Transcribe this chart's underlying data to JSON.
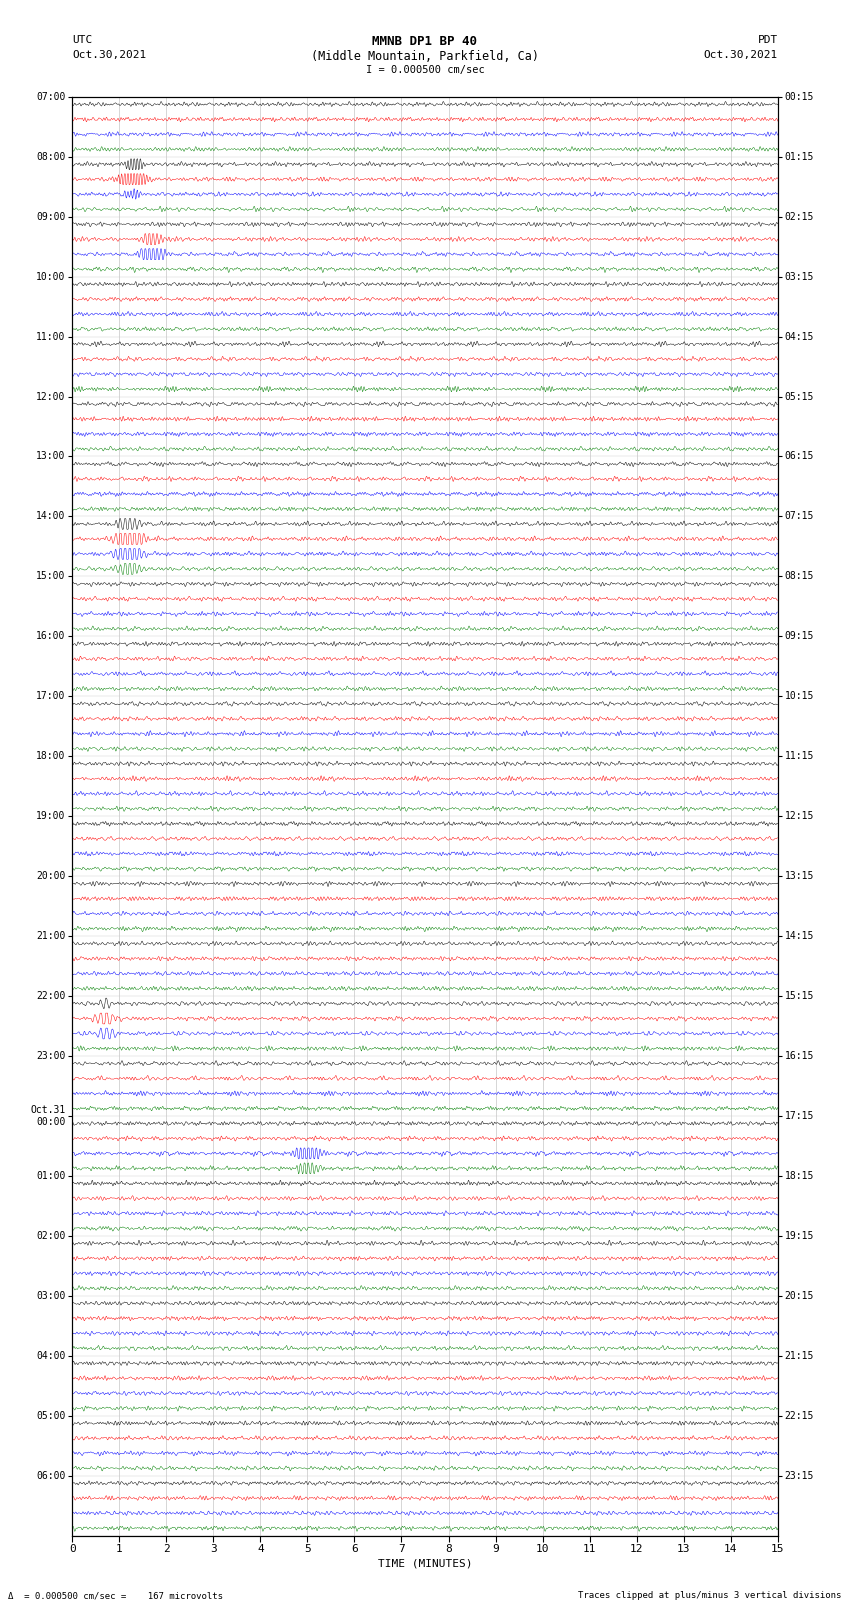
{
  "title_line1": "MMNB DP1 BP 40",
  "title_line2": "(Middle Mountain, Parkfield, Ca)",
  "scale_label": "I = 0.000500 cm/sec",
  "left_header_line1": "UTC",
  "left_header_line2": "Oct.30,2021",
  "right_header_line1": "PDT",
  "right_header_line2": "Oct.30,2021",
  "xlabel": "TIME (MINUTES)",
  "footer_left": "Δ  = 0.000500 cm/sec =    167 microvolts",
  "footer_right": "Traces clipped at plus/minus 3 vertical divisions",
  "bg_color": "#ffffff",
  "trace_colors": [
    "#000000",
    "#ff0000",
    "#0000ff",
    "#008000"
  ],
  "num_groups": 24,
  "traces_per_group": 4,
  "xmin": 0,
  "xmax": 15,
  "left_labels": [
    "07:00",
    "08:00",
    "09:00",
    "10:00",
    "11:00",
    "12:00",
    "13:00",
    "14:00",
    "15:00",
    "16:00",
    "17:00",
    "18:00",
    "19:00",
    "20:00",
    "21:00",
    "22:00",
    "23:00",
    "Oct.31\n00:00",
    "01:00",
    "02:00",
    "03:00",
    "04:00",
    "05:00",
    "06:00"
  ],
  "right_labels": [
    "00:15",
    "01:15",
    "02:15",
    "03:15",
    "04:15",
    "05:15",
    "06:15",
    "07:15",
    "08:15",
    "09:15",
    "10:15",
    "11:15",
    "12:15",
    "13:15",
    "14:15",
    "15:15",
    "16:15",
    "17:15",
    "18:15",
    "19:15",
    "20:15",
    "21:15",
    "22:15",
    "23:15"
  ],
  "noise_base": 0.06,
  "grid_color": "#999999",
  "special_events": [
    {
      "group": 1,
      "trace": 0,
      "minute": 1.3,
      "amp": 1.2,
      "freq": 15,
      "dur": 0.4
    },
    {
      "group": 1,
      "trace": 1,
      "minute": 1.3,
      "amp": 2.5,
      "freq": 15,
      "dur": 0.5
    },
    {
      "group": 1,
      "trace": 2,
      "minute": 1.3,
      "amp": 0.8,
      "freq": 15,
      "dur": 0.3
    },
    {
      "group": 2,
      "trace": 1,
      "minute": 1.7,
      "amp": 1.5,
      "freq": 12,
      "dur": 0.4
    },
    {
      "group": 2,
      "trace": 2,
      "minute": 1.7,
      "amp": 2.0,
      "freq": 12,
      "dur": 0.5
    },
    {
      "group": 7,
      "trace": 0,
      "minute": 1.2,
      "amp": 1.2,
      "freq": 10,
      "dur": 0.5
    },
    {
      "group": 7,
      "trace": 1,
      "minute": 1.2,
      "amp": 2.5,
      "freq": 10,
      "dur": 0.6
    },
    {
      "group": 7,
      "trace": 2,
      "minute": 1.2,
      "amp": 1.8,
      "freq": 10,
      "dur": 0.6
    },
    {
      "group": 7,
      "trace": 3,
      "minute": 1.2,
      "amp": 1.5,
      "freq": 10,
      "dur": 0.5
    },
    {
      "group": 15,
      "trace": 0,
      "minute": 0.7,
      "amp": 0.8,
      "freq": 8,
      "dur": 0.3
    },
    {
      "group": 15,
      "trace": 1,
      "minute": 0.7,
      "amp": 1.5,
      "freq": 8,
      "dur": 0.4
    },
    {
      "group": 15,
      "trace": 2,
      "minute": 0.7,
      "amp": 1.2,
      "freq": 8,
      "dur": 0.4
    },
    {
      "group": 17,
      "trace": 2,
      "minute": 5.0,
      "amp": 1.5,
      "freq": 12,
      "dur": 0.6
    },
    {
      "group": 17,
      "trace": 3,
      "minute": 5.0,
      "amp": 1.0,
      "freq": 12,
      "dur": 0.5
    }
  ]
}
